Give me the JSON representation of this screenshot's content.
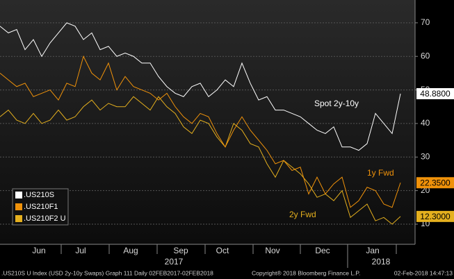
{
  "chart_data": {
    "type": "line",
    "categories": [
      null,
      null,
      null,
      null,
      null,
      "Jun",
      null,
      null,
      null,
      null,
      "Jul",
      null,
      null,
      null,
      null,
      null,
      "Aug",
      null,
      null,
      null,
      null,
      null,
      "Sep",
      null,
      null,
      null,
      null,
      "Oct",
      null,
      null,
      null,
      null,
      null,
      "Nov",
      null,
      null,
      null,
      null,
      null,
      "Dec",
      null,
      null,
      null,
      null,
      null,
      "Jan",
      null,
      null,
      null
    ],
    "years": [
      "2017",
      "2018"
    ],
    "series": [
      {
        "name": ".US210S",
        "color": "#ffffff",
        "values": [
          69,
          67,
          68,
          62,
          65,
          60,
          64,
          67,
          70,
          69,
          65,
          67,
          62,
          63,
          60,
          61,
          60,
          58,
          58,
          54,
          51,
          49,
          48,
          51,
          52,
          48,
          50,
          53,
          51,
          58,
          52,
          47,
          48,
          44,
          44,
          43,
          42,
          40,
          38,
          37,
          39,
          33,
          33,
          32,
          34,
          43,
          40,
          37,
          48.88
        ],
        "value_labels": [
          null,
          null,
          null,
          null,
          null,
          null,
          null,
          null,
          null,
          null,
          null,
          null,
          null,
          null,
          null,
          null,
          null,
          null,
          null,
          null,
          null,
          null,
          null,
          null,
          null,
          null,
          null,
          null,
          null,
          null,
          null,
          null,
          null,
          null,
          null,
          null,
          null,
          null,
          null,
          null,
          null,
          null,
          null,
          null,
          null,
          null,
          null,
          null,
          "48.8800"
        ]
      },
      {
        "name": ".US210F1",
        "color": "#f0920a",
        "values": [
          55,
          53,
          51,
          52,
          48,
          49,
          50,
          47,
          52,
          51,
          60,
          55,
          53,
          58,
          50,
          54,
          51,
          50,
          49,
          47,
          49,
          45,
          42,
          40,
          43,
          42,
          37,
          33,
          38,
          42,
          38,
          35,
          32,
          28,
          29,
          26,
          27,
          19,
          24,
          19,
          22,
          24,
          15,
          17,
          21,
          20,
          16,
          15,
          22.35
        ],
        "value_labels": [
          null,
          null,
          null,
          null,
          null,
          null,
          null,
          null,
          null,
          null,
          null,
          null,
          null,
          null,
          null,
          null,
          null,
          null,
          null,
          null,
          null,
          null,
          null,
          null,
          null,
          null,
          null,
          null,
          null,
          null,
          null,
          null,
          null,
          null,
          null,
          null,
          null,
          null,
          null,
          null,
          null,
          null,
          null,
          null,
          null,
          null,
          null,
          null,
          "22.3500"
        ]
      },
      {
        "name": ".US210F2 U",
        "color": "#e5b01e",
        "values": [
          42,
          44,
          41,
          40,
          43,
          40,
          41,
          44,
          41,
          42,
          45,
          47,
          44,
          46,
          45,
          45,
          48,
          46,
          44,
          48,
          45,
          43,
          39,
          37,
          41,
          40,
          36,
          33,
          40,
          38,
          34,
          33,
          28,
          24,
          29,
          27,
          25,
          22,
          18,
          19,
          17,
          20,
          12,
          14,
          16,
          11,
          12,
          10,
          12.3
        ],
        "value_labels": [
          null,
          null,
          null,
          null,
          null,
          null,
          null,
          null,
          null,
          null,
          null,
          null,
          null,
          null,
          null,
          null,
          null,
          null,
          null,
          null,
          null,
          null,
          null,
          null,
          null,
          null,
          null,
          null,
          null,
          null,
          null,
          null,
          null,
          null,
          null,
          null,
          null,
          null,
          null,
          null,
          null,
          null,
          null,
          null,
          null,
          null,
          null,
          null,
          "12.3000"
        ]
      }
    ],
    "annotations": [
      "Spot 2y-10y",
      "1y Fwd",
      "2y Fwd"
    ],
    "ylim": [
      4,
      76.8
    ],
    "yticks": [
      10,
      20,
      30,
      40,
      50,
      60,
      70
    ],
    "grid": true,
    "footer": ".US210S U Index (USD 2y-10y Swaps) Graph 111  Daily 02FEB2017-02FEB2018",
    "copyright": "Copyright® 2018 Bloomberg Finance L.P.",
    "timestamp": "02-Feb-2018 14:47:13"
  }
}
